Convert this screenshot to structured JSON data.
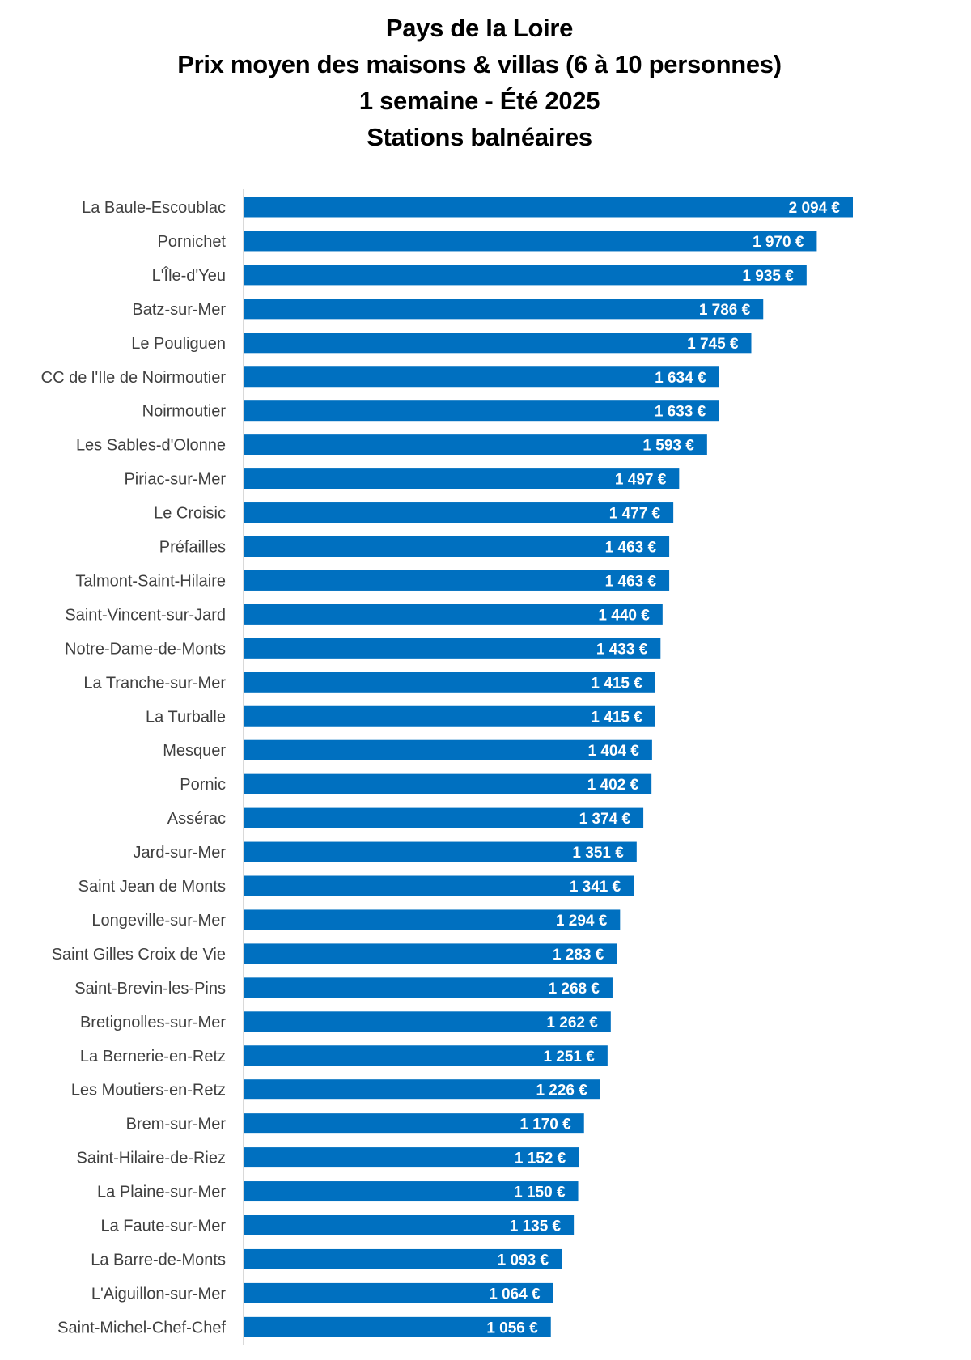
{
  "chart_data": {
    "type": "bar",
    "orientation": "horizontal",
    "title": [
      "Pays de la Loire",
      "Prix moyen des maisons & villas (6 à 10 personnes)",
      "1 semaine - Été 2025",
      "Stations balnéaires"
    ],
    "xlabel": "",
    "ylabel": "",
    "xlim": [
      0,
      2094
    ],
    "grid": false,
    "legend": "none",
    "bar_color": "#0070C0",
    "value_label_color": "#FFFFFF",
    "categories": [
      "La Baule-Escoublac",
      "Pornichet",
      "L'Île-d'Yeu",
      "Batz-sur-Mer",
      "Le Pouliguen",
      "CC de l'Ile de Noirmoutier",
      "Noirmoutier",
      "Les Sables-d'Olonne",
      "Piriac-sur-Mer",
      "Le Croisic",
      "Préfailles",
      "Talmont-Saint-Hilaire",
      "Saint-Vincent-sur-Jard",
      "Notre-Dame-de-Monts",
      "La Tranche-sur-Mer",
      "La Turballe",
      "Mesquer",
      "Pornic",
      "Assérac",
      "Jard-sur-Mer",
      "Saint Jean de Monts",
      "Longeville-sur-Mer",
      "Saint Gilles Croix de Vie",
      "Saint-Brevin-les-Pins",
      "Bretignolles-sur-Mer",
      "La Bernerie-en-Retz",
      "Les Moutiers-en-Retz",
      "Brem-sur-Mer",
      "Saint-Hilaire-de-Riez",
      "La Plaine-sur-Mer",
      "La Faute-sur-Mer",
      "La Barre-de-Monts",
      "L'Aiguillon-sur-Mer",
      "Saint-Michel-Chef-Chef"
    ],
    "values": [
      2094,
      1970,
      1935,
      1786,
      1745,
      1634,
      1633,
      1593,
      1497,
      1477,
      1463,
      1463,
      1440,
      1433,
      1415,
      1415,
      1404,
      1402,
      1374,
      1351,
      1341,
      1294,
      1283,
      1268,
      1262,
      1251,
      1226,
      1170,
      1152,
      1150,
      1135,
      1093,
      1064,
      1056
    ],
    "value_labels": [
      "2 094 €",
      "1 970 €",
      "1 935 €",
      "1 786 €",
      "1 745 €",
      "1 634 €",
      "1 633 €",
      "1 593 €",
      "1 497 €",
      "1 477 €",
      "1 463 €",
      "1 463 €",
      "1 440 €",
      "1 433 €",
      "1 415 €",
      "1 415 €",
      "1 404 €",
      "1 402 €",
      "1 374 €",
      "1 351 €",
      "1 341 €",
      "1 294 €",
      "1 283 €",
      "1 268 €",
      "1 262 €",
      "1 251 €",
      "1 226 €",
      "1 170 €",
      "1 152 €",
      "1 150 €",
      "1 135 €",
      "1 093 €",
      "1 064 €",
      "1 056 €"
    ],
    "unit": "€"
  }
}
